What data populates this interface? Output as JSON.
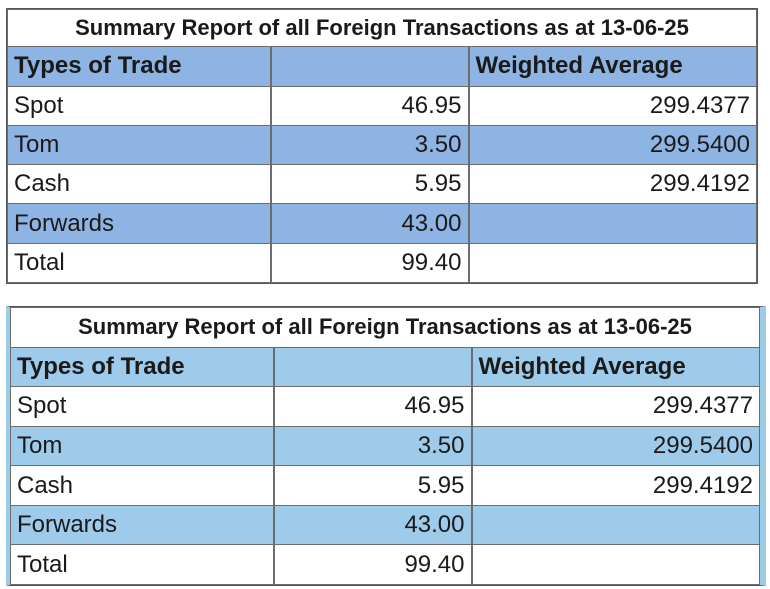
{
  "reports": [
    {
      "title": "Summary Report of all Foreign Transactions as at 13-06-25",
      "headers": [
        "Types of Trade",
        "",
        "Weighted Average"
      ],
      "rows": [
        {
          "type": "Spot",
          "amount": "46.95",
          "weighted_average": "299.4377"
        },
        {
          "type": "Tom",
          "amount": "3.50",
          "weighted_average": "299.5400"
        },
        {
          "type": "Cash",
          "amount": "5.95",
          "weighted_average": "299.4192"
        },
        {
          "type": "Forwards",
          "amount": "43.00",
          "weighted_average": ""
        },
        {
          "type": "Total",
          "amount": "99.40",
          "weighted_average": ""
        }
      ],
      "band_color": "#8eb4e3"
    },
    {
      "title": "Summary Report of all Foreign Transactions as at 13-06-25",
      "headers": [
        "Types of Trade",
        "",
        "Weighted Average"
      ],
      "rows": [
        {
          "type": "Spot",
          "amount": "46.95",
          "weighted_average": "299.4377"
        },
        {
          "type": "Tom",
          "amount": "3.50",
          "weighted_average": "299.5400"
        },
        {
          "type": "Cash",
          "amount": "5.95",
          "weighted_average": "299.4192"
        },
        {
          "type": "Forwards",
          "amount": "43.00",
          "weighted_average": ""
        },
        {
          "type": "Total",
          "amount": "99.40",
          "weighted_average": ""
        }
      ],
      "band_color": "#9fcbeb"
    }
  ]
}
